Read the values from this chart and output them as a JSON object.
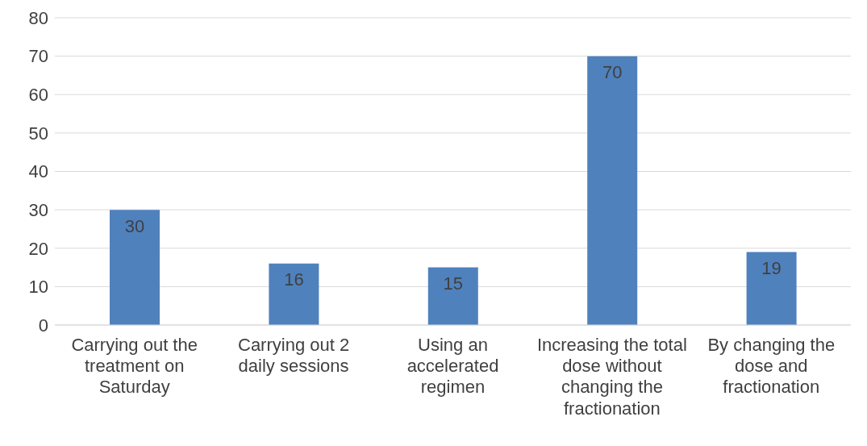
{
  "chart_data": {
    "type": "bar",
    "categories": [
      "Carrying out the treatment on Saturday",
      "Carrying out 2 daily sessions",
      "Using an accelerated regimen",
      "Increasing the total dose without changing the fractionation",
      "By changing the dose and fractionation"
    ],
    "values": [
      30,
      16,
      15,
      70,
      19
    ],
    "color": "#4f81bd",
    "ylim": [
      0,
      80
    ],
    "yticks": [
      0,
      10,
      20,
      30,
      40,
      50,
      60,
      70,
      80
    ],
    "grid": "y",
    "data_labels": true
  }
}
